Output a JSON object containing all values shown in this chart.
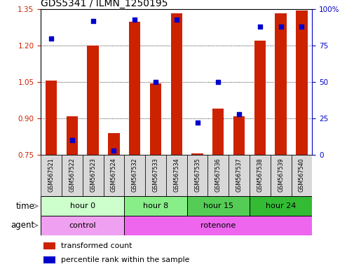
{
  "title": "GDS5341 / ILMN_1250195",
  "samples": [
    "GSM567521",
    "GSM567522",
    "GSM567523",
    "GSM567524",
    "GSM567532",
    "GSM567533",
    "GSM567534",
    "GSM567535",
    "GSM567536",
    "GSM567537",
    "GSM567538",
    "GSM567539",
    "GSM567540"
  ],
  "transformed_count": [
    1.055,
    0.91,
    1.2,
    0.84,
    1.3,
    1.045,
    1.335,
    0.755,
    0.94,
    0.91,
    1.22,
    1.335,
    1.345
  ],
  "percentile_rank": [
    80,
    10,
    92,
    3,
    93,
    50,
    93,
    22,
    50,
    28,
    88,
    88,
    88
  ],
  "ylim_left": [
    0.75,
    1.35
  ],
  "ylim_right": [
    0,
    100
  ],
  "yticks_left": [
    0.75,
    0.9,
    1.05,
    1.2,
    1.35
  ],
  "yticks_right": [
    0,
    25,
    50,
    75,
    100
  ],
  "ylabel_left_color": "#cc2200",
  "ylabel_right_color": "#0000cc",
  "bar_color": "#cc2200",
  "dot_color": "#0000cc",
  "grid_color": "#000000",
  "time_groups": [
    {
      "label": "hour 0",
      "start": 0,
      "end": 4,
      "color": "#ccffcc"
    },
    {
      "label": "hour 8",
      "start": 4,
      "end": 7,
      "color": "#88ee88"
    },
    {
      "label": "hour 15",
      "start": 7,
      "end": 10,
      "color": "#55cc55"
    },
    {
      "label": "hour 24",
      "start": 10,
      "end": 13,
      "color": "#33bb33"
    }
  ],
  "agent_groups": [
    {
      "label": "control",
      "start": 0,
      "end": 4,
      "color": "#f0a0f0"
    },
    {
      "label": "rotenone",
      "start": 4,
      "end": 13,
      "color": "#ee66ee"
    }
  ],
  "legend_items": [
    {
      "label": "transformed count",
      "color": "#cc2200"
    },
    {
      "label": "percentile rank within the sample",
      "color": "#0000cc"
    }
  ],
  "figsize": [
    5.06,
    3.84
  ],
  "dpi": 100
}
